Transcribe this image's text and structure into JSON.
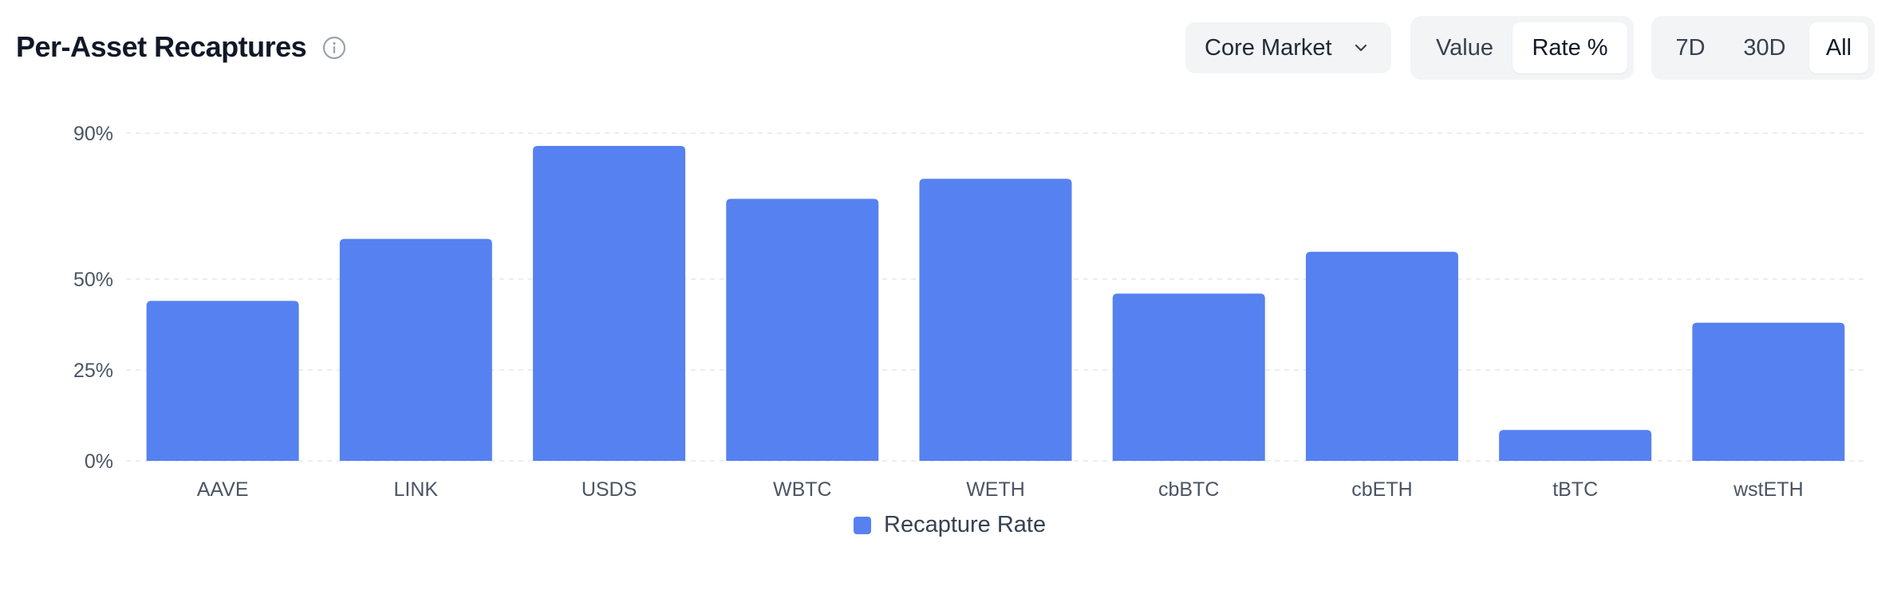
{
  "header": {
    "title": "Per-Asset Recaptures",
    "info_icon": "info-circle-icon"
  },
  "controls": {
    "market_dropdown": {
      "selected": "Core Market",
      "icon": "chevron-down-icon"
    },
    "metric_toggle": {
      "options": [
        "Value",
        "Rate %"
      ],
      "active": "Rate %"
    },
    "time_toggle": {
      "options": [
        "7D",
        "30D",
        "All"
      ],
      "active": "All"
    }
  },
  "colors": {
    "bar": "#5681f0",
    "grid": "#e5e7eb",
    "axis_text": "#4b5563"
  },
  "chart_data": {
    "type": "bar",
    "categories": [
      "AAVE",
      "LINK",
      "USDS",
      "WBTC",
      "WETH",
      "cbBTC",
      "cbETH",
      "tBTC",
      "wstETH"
    ],
    "series": [
      {
        "name": "Recapture Rate",
        "values": [
          44,
          61,
          86.5,
          72,
          77.5,
          46,
          57.5,
          8.5,
          38
        ]
      }
    ],
    "yticks": [
      "0%",
      "25%",
      "50%",
      "90%"
    ],
    "ytick_values": [
      0,
      25,
      50,
      90
    ],
    "ylim": [
      0,
      90
    ],
    "grid": true,
    "legend": "bottom-center"
  }
}
